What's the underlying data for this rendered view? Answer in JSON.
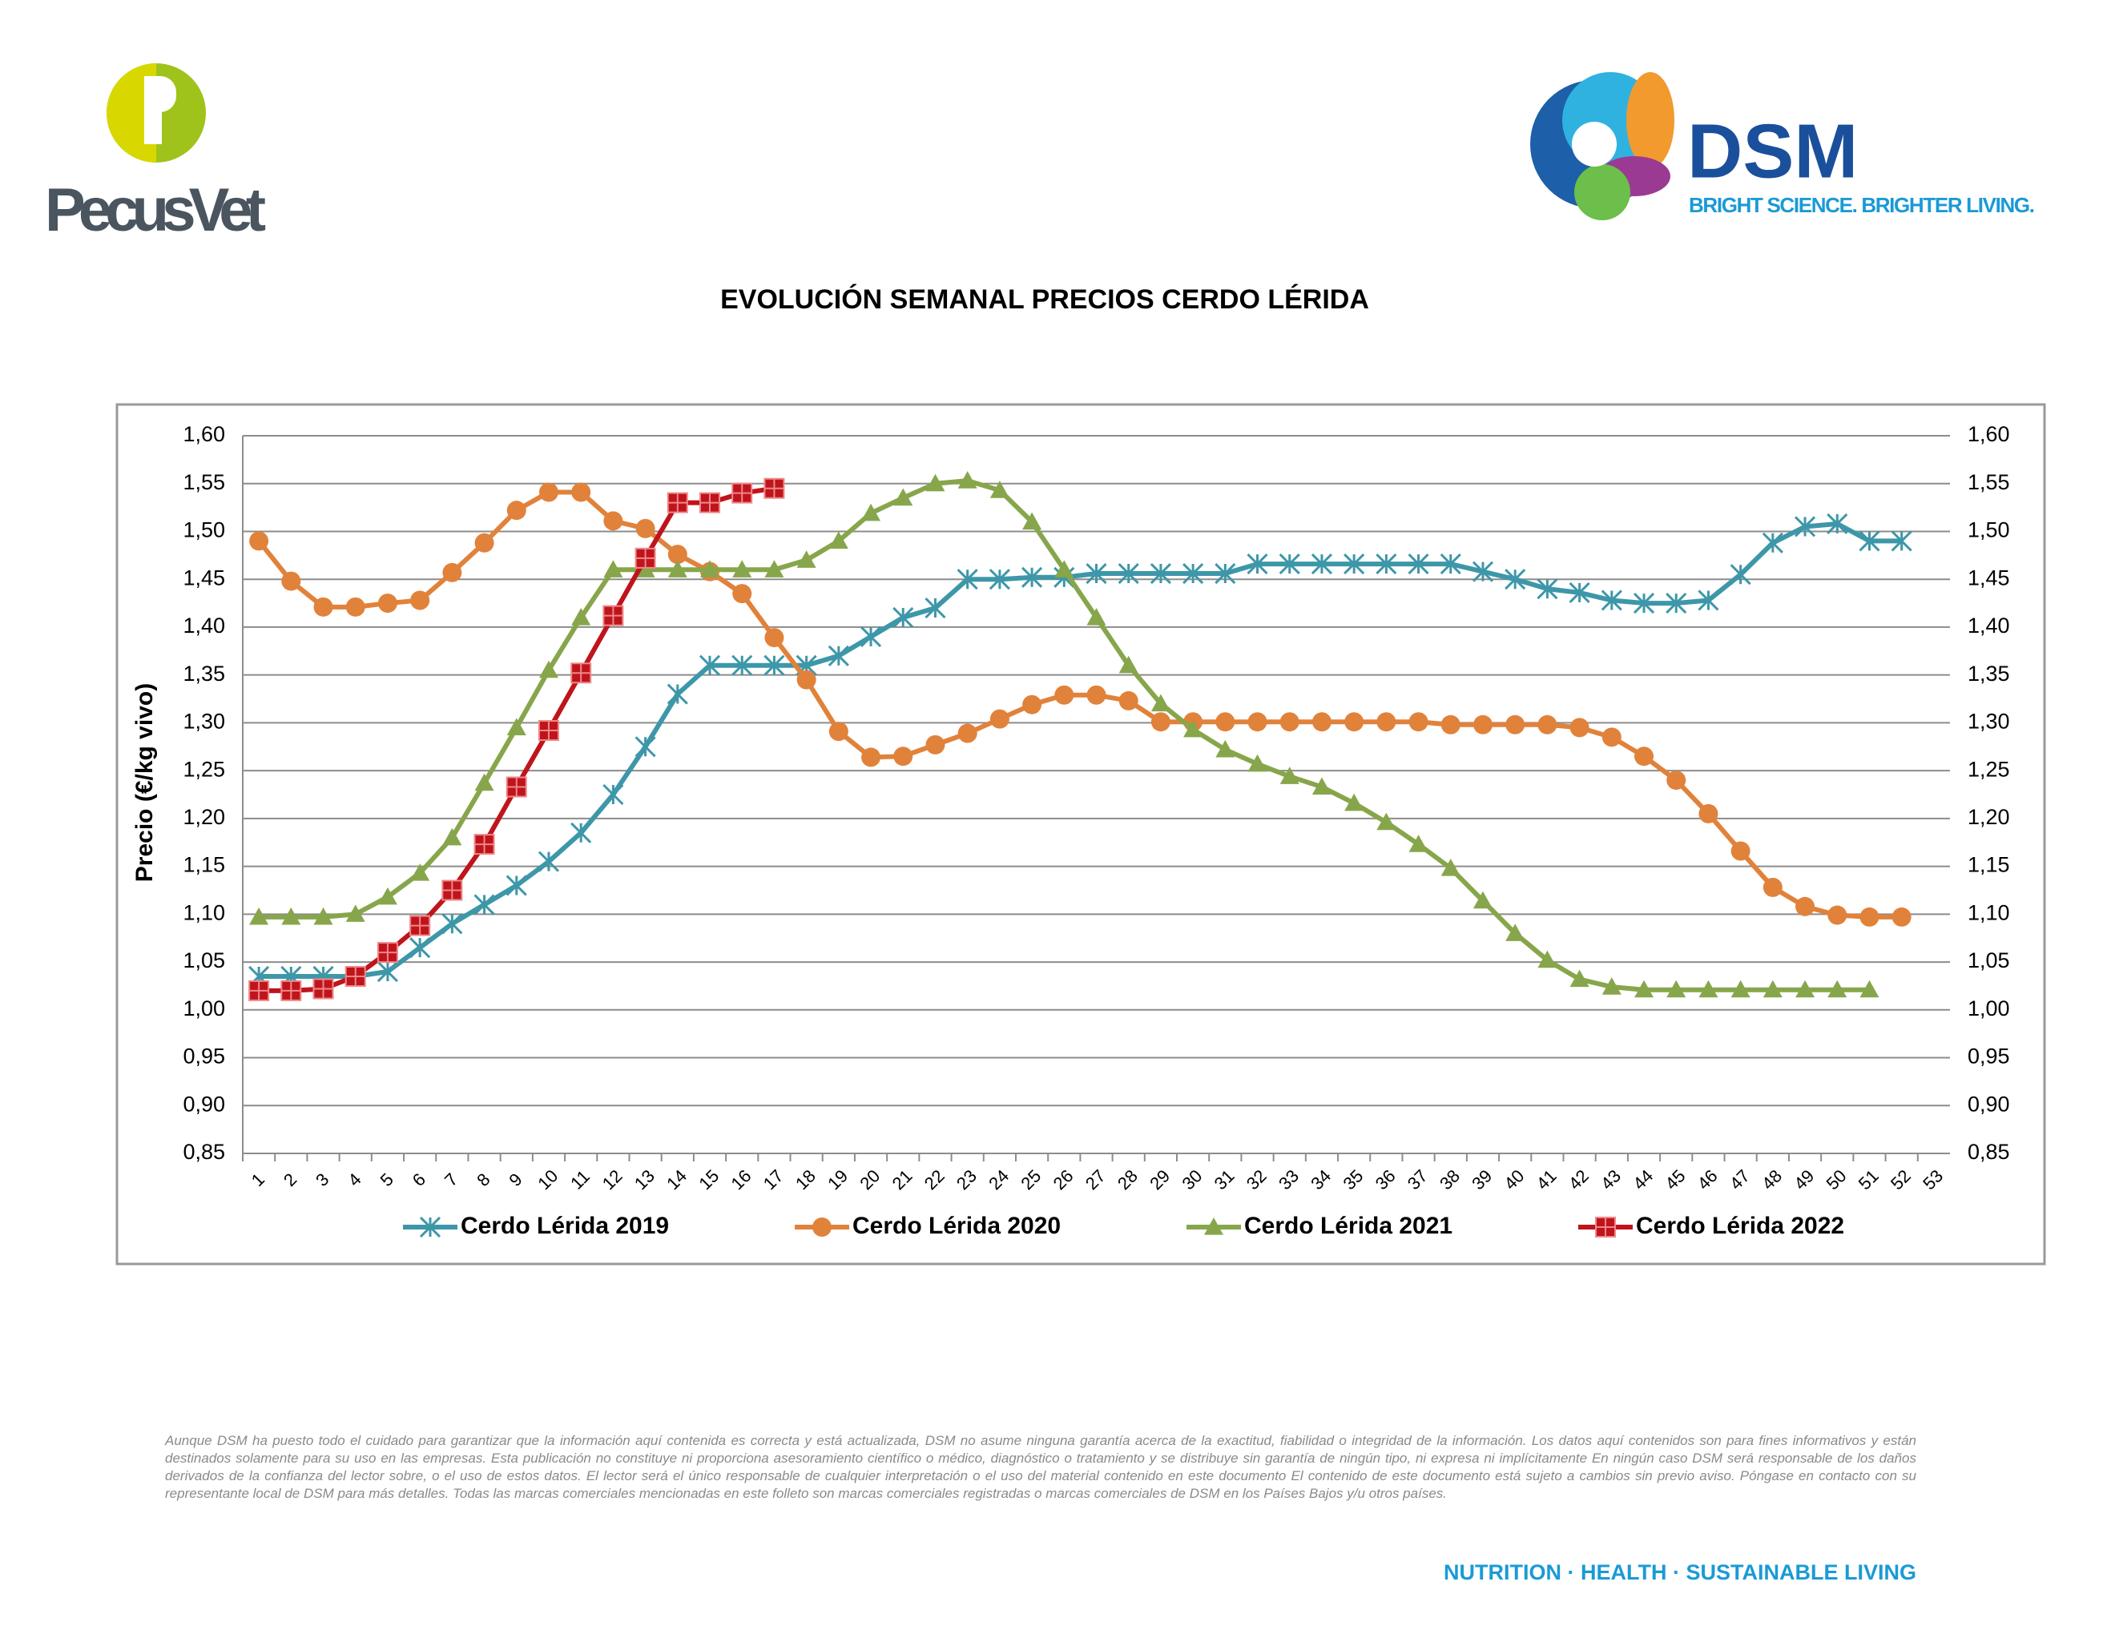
{
  "header": {
    "left_logo": "PecusVet",
    "right_logo": "DSM",
    "tagline": "BRIGHT SCIENCE. BRIGHTER LIVING."
  },
  "chart_data": {
    "type": "line",
    "title": "EVOLUCIÓN SEMANAL PRECIOS CERDO LÉRIDA",
    "y_label": "Precio (€/kg vivo)",
    "categories": [
      "1",
      "2",
      "3",
      "4",
      "5",
      "6",
      "7",
      "8",
      "9",
      "10",
      "11",
      "12",
      "13",
      "14",
      "15",
      "16",
      "17",
      "18",
      "19",
      "20",
      "21",
      "22",
      "23",
      "24",
      "25",
      "26",
      "27",
      "28",
      "29",
      "30",
      "31",
      "32",
      "33",
      "34",
      "35",
      "36",
      "37",
      "38",
      "39",
      "40",
      "41",
      "42",
      "43",
      "44",
      "45",
      "46",
      "47",
      "48",
      "49",
      "50",
      "51",
      "52",
      "53"
    ],
    "series": [
      {
        "name": "Cerdo Lérida 2019",
        "color": "#3d97a9",
        "marker": "asterisk",
        "values": [
          1.035,
          1.035,
          1.035,
          1.035,
          1.04,
          1.065,
          1.09,
          1.11,
          1.13,
          1.155,
          1.185,
          1.225,
          1.275,
          1.33,
          1.36,
          1.36,
          1.36,
          1.36,
          1.37,
          1.39,
          1.41,
          1.42,
          1.45,
          1.45,
          1.452,
          1.452,
          1.456,
          1.456,
          1.456,
          1.456,
          1.456,
          1.466,
          1.466,
          1.466,
          1.466,
          1.466,
          1.466,
          1.466,
          1.458,
          1.45,
          1.44,
          1.436,
          1.428,
          1.425,
          1.425,
          1.428,
          1.455,
          1.488,
          1.505,
          1.508,
          1.49,
          1.49,
          null
        ]
      },
      {
        "name": "Cerdo Lérida 2020",
        "color": "#e1823b",
        "marker": "circle",
        "values": [
          1.49,
          1.448,
          1.421,
          1.421,
          1.425,
          1.428,
          1.457,
          1.488,
          1.522,
          1.541,
          1.541,
          1.511,
          1.503,
          1.476,
          1.458,
          1.435,
          1.389,
          1.345,
          1.291,
          1.264,
          1.265,
          1.277,
          1.289,
          1.304,
          1.319,
          1.329,
          1.329,
          1.323,
          1.301,
          1.301,
          1.301,
          1.301,
          1.301,
          1.301,
          1.301,
          1.301,
          1.301,
          1.298,
          1.298,
          1.298,
          1.298,
          1.295,
          1.285,
          1.265,
          1.24,
          1.205,
          1.166,
          1.128,
          1.108,
          1.099,
          1.097,
          1.097,
          null
        ]
      },
      {
        "name": "Cerdo Lérida 2021",
        "color": "#87a64b",
        "marker": "triangle",
        "values": [
          1.097,
          1.097,
          1.097,
          1.1,
          1.118,
          1.143,
          1.18,
          1.237,
          1.295,
          1.355,
          1.41,
          1.46,
          1.46,
          1.46,
          1.46,
          1.46,
          1.46,
          1.47,
          1.49,
          1.519,
          1.535,
          1.55,
          1.553,
          1.543,
          1.51,
          1.46,
          1.41,
          1.36,
          1.32,
          1.293,
          1.272,
          1.257,
          1.244,
          1.233,
          1.216,
          1.196,
          1.173,
          1.148,
          1.114,
          1.08,
          1.052,
          1.032,
          1.024,
          1.021,
          1.021,
          1.021,
          1.021,
          1.021,
          1.021,
          1.021,
          1.021,
          null,
          null
        ]
      },
      {
        "name": "Cerdo Lérida 2022",
        "color": "#c0141c",
        "marker": "square",
        "values": [
          1.02,
          1.02,
          1.022,
          1.035,
          1.06,
          1.088,
          1.125,
          1.173,
          1.233,
          1.292,
          1.352,
          1.412,
          1.472,
          1.53,
          1.53,
          1.54,
          1.545,
          null,
          null,
          null,
          null,
          null,
          null,
          null,
          null,
          null,
          null,
          null,
          null,
          null,
          null,
          null,
          null,
          null,
          null,
          null,
          null,
          null,
          null,
          null,
          null,
          null,
          null,
          null,
          null,
          null,
          null,
          null,
          null,
          null,
          null,
          null,
          null
        ]
      }
    ],
    "ylim": [
      0.85,
      1.6
    ],
    "yticks": [
      {
        "value": 0.85,
        "label": "0,85"
      },
      {
        "value": 0.9,
        "label": "0,90"
      },
      {
        "value": 0.95,
        "label": "0,95"
      },
      {
        "value": 1.0,
        "label": "1,00"
      },
      {
        "value": 1.05,
        "label": "1,05"
      },
      {
        "value": 1.1,
        "label": "1,10"
      },
      {
        "value": 1.15,
        "label": "1,15"
      },
      {
        "value": 1.2,
        "label": "1,20"
      },
      {
        "value": 1.25,
        "label": "1,25"
      },
      {
        "value": 1.3,
        "label": "1,30"
      },
      {
        "value": 1.35,
        "label": "1,35"
      },
      {
        "value": 1.4,
        "label": "1,40"
      },
      {
        "value": 1.45,
        "label": "1,45"
      },
      {
        "value": 1.5,
        "label": "1,50"
      },
      {
        "value": 1.55,
        "label": "1,55"
      },
      {
        "value": 1.6,
        "label": "1,60"
      }
    ],
    "y2lim": [
      0.85,
      1.6
    ],
    "y2ticks": [
      {
        "value": 0.85,
        "label": "0,85"
      },
      {
        "value": 0.9,
        "label": "0,90"
      },
      {
        "value": 0.95,
        "label": "0,95"
      },
      {
        "value": 1.0,
        "label": "1,00"
      },
      {
        "value": 1.05,
        "label": "1,05"
      },
      {
        "value": 1.1,
        "label": "1,10"
      },
      {
        "value": 1.15,
        "label": "1,15"
      },
      {
        "value": 1.2,
        "label": "1,20"
      },
      {
        "value": 1.25,
        "label": "1,25"
      },
      {
        "value": 1.3,
        "label": "1,30"
      },
      {
        "value": 1.35,
        "label": "1,35"
      },
      {
        "value": 1.4,
        "label": "1,40"
      },
      {
        "value": 1.45,
        "label": "1,45"
      },
      {
        "value": 1.5,
        "label": "1,50"
      },
      {
        "value": 1.55,
        "label": "1,55"
      },
      {
        "value": 1.6,
        "label": "1,60"
      }
    ],
    "grid": true,
    "legend": "bottom"
  },
  "footer": {
    "disclaimer": "Aunque DSM ha puesto todo el cuidado para garantizar que la información aquí contenida es correcta y está actualizada, DSM no asume ninguna garantía acerca de la exactitud, fiabilidad o integridad de la información. Los datos aquí contenidos son para fines informativos y están destinados solamente para su uso en las empresas. Esta publicación no constituye ni proporciona asesoramiento científico o médico, diagnóstico o tratamiento y se distribuye sin garantía de ningún tipo, ni expresa ni implícitamente En ningún caso DSM será responsable de los daños derivados de la confianza del lector sobre, o el uso de estos datos. El lector será el único responsable de cualquier interpretación o el uso del material contenido en este documento El contenido de este documento está sujeto a cambios sin previo aviso. Póngase en contacto con su representante local de DSM para más detalles. Todas las marcas comerciales mencionadas en este folleto son marcas comerciales registradas o marcas comerciales de DSM en los Países Bajos y/u otros países.",
    "slogan": "NUTRITION · HEALTH · SUSTAINABLE LIVING"
  }
}
